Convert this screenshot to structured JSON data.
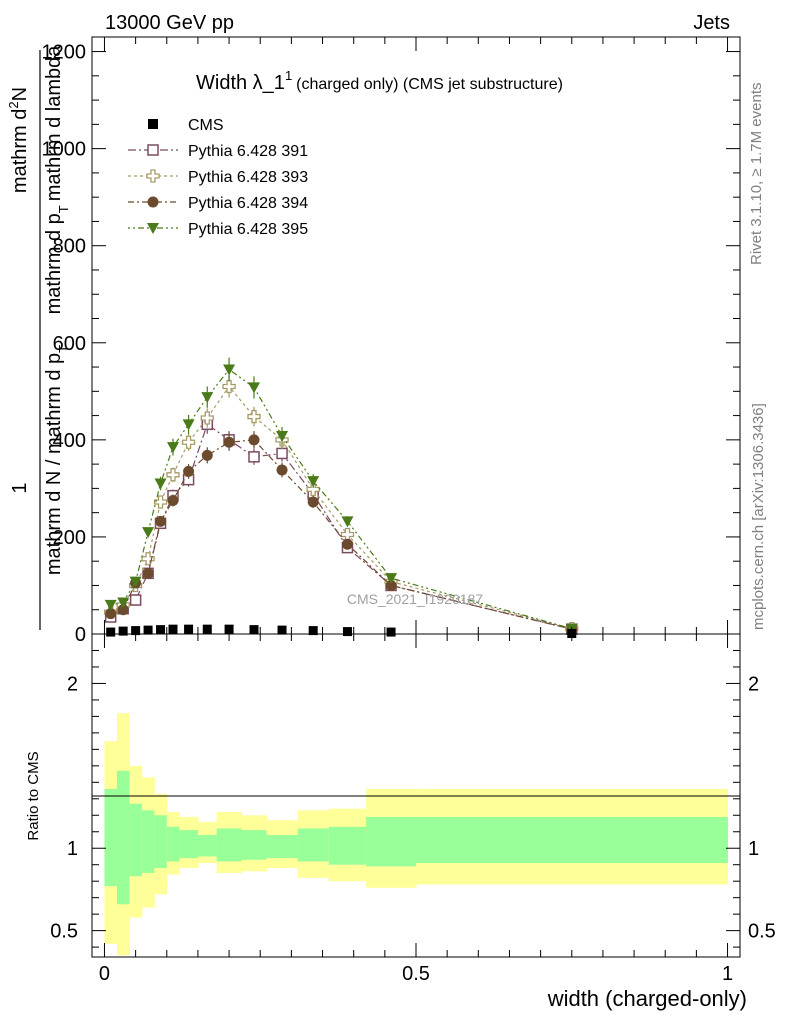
{
  "header": {
    "energy_label": "13000 GeV pp",
    "category_label": "Jets"
  },
  "side_labels": {
    "rivet": "Rivet 3.1.10, ≥ 1.7M events",
    "mcplots": "mcplots.cern.ch [arXiv:1306.3436]"
  },
  "chart_data": {
    "type": "scatter",
    "title_main": "Width λ_1",
    "title_sup": "1",
    "title_sub": "(charged only) (CMS jet substructure)",
    "watermark": "CMS_2021_I1920187",
    "xlabel": "width (charged-only)",
    "ylabel": "1 / (mathrm d N / mathrm d p_T) · mathrm d²N / (mathrm d p_T mathrm d lambda)",
    "ylabel_numerator": "1",
    "ylabel_denominator": "mathrm d N / mathrm d p",
    "ylabel_denominator_sub": "T",
    "ylabel_right_top": "mathrm d",
    "ylabel_right_top_sup": "2",
    "ylabel_right_top2": "N",
    "ylabel_right_bottom": "mathrm d p",
    "ylabel_right_bottom_sub": "T",
    "ylabel_right_bottom2": "mathrm d lambda",
    "ratio_ylabel": "Ratio to CMS",
    "xlim": [
      -0.02,
      1.02
    ],
    "ylim": [
      0,
      1230
    ],
    "ratio_ylim": [
      0.34,
      2.3
    ],
    "x_ticks": [
      "0",
      "0.5",
      "1"
    ],
    "x_tick_values": [
      0,
      0.5,
      1
    ],
    "y_ticks": [
      "0",
      "200",
      "400",
      "600",
      "800",
      "1000",
      "1200"
    ],
    "y_tick_values": [
      0,
      200,
      400,
      600,
      800,
      1000,
      1200
    ],
    "ratio_ticks": [
      "0.5",
      "1",
      "2"
    ],
    "ratio_tick_values": [
      0.5,
      1,
      2
    ],
    "grid": false,
    "legend_position": "top-left",
    "x": [
      0.01,
      0.03,
      0.05,
      0.07,
      0.09,
      0.11,
      0.135,
      0.165,
      0.2,
      0.24,
      0.285,
      0.335,
      0.39,
      0.46,
      0.75
    ],
    "cms": [
      4,
      6,
      7,
      8,
      9,
      10,
      10,
      10,
      10,
      9,
      8,
      7,
      5,
      4,
      1
    ],
    "series": [
      {
        "name": "Pythia 6.428 391",
        "color": "#7a4a60",
        "marker": "open-square",
        "values": [
          35,
          52,
          70,
          125,
          228,
          285,
          318,
          432,
          400,
          365,
          372,
          288,
          178,
          100,
          10
        ]
      },
      {
        "name": "Pythia 6.428 393",
        "color": "#a89a66",
        "marker": "open-cross",
        "values": [
          45,
          60,
          100,
          155,
          272,
          328,
          395,
          445,
          510,
          448,
          400,
          298,
          205,
          108,
          11
        ]
      },
      {
        "name": "Pythia 6.428 394",
        "color": "#6b4a2e",
        "marker": "filled-circle",
        "values": [
          42,
          50,
          105,
          125,
          232,
          275,
          335,
          368,
          395,
          400,
          338,
          272,
          185,
          100,
          10
        ]
      },
      {
        "name": "Pythia 6.428 395",
        "color": "#4a7a1a",
        "marker": "filled-triangle-down",
        "values": [
          60,
          65,
          108,
          210,
          310,
          385,
          432,
          488,
          545,
          508,
          408,
          315,
          232,
          115,
          11
        ]
      }
    ],
    "ratio_bands": {
      "edges": [
        0,
        0.02,
        0.04,
        0.06,
        0.08,
        0.1,
        0.12,
        0.15,
        0.18,
        0.22,
        0.26,
        0.31,
        0.36,
        0.42,
        0.5,
        1.0
      ],
      "outer_up": [
        1.65,
        1.82,
        1.5,
        1.43,
        1.33,
        1.22,
        1.19,
        1.16,
        1.22,
        1.2,
        1.17,
        1.23,
        1.24,
        1.36,
        1.36
      ],
      "outer_down": [
        0.42,
        0.35,
        0.58,
        0.64,
        0.72,
        0.84,
        0.88,
        0.91,
        0.85,
        0.86,
        0.88,
        0.82,
        0.8,
        0.76,
        0.78
      ],
      "inner_up": [
        1.36,
        1.47,
        1.27,
        1.23,
        1.2,
        1.13,
        1.11,
        1.08,
        1.12,
        1.11,
        1.08,
        1.12,
        1.13,
        1.19,
        1.19
      ],
      "inner_down": [
        0.77,
        0.66,
        0.83,
        0.85,
        0.88,
        0.92,
        0.94,
        0.95,
        0.92,
        0.93,
        0.94,
        0.92,
        0.9,
        0.89,
        0.91
      ],
      "outer_color": "#ffff99",
      "inner_color": "#99ff99"
    }
  }
}
